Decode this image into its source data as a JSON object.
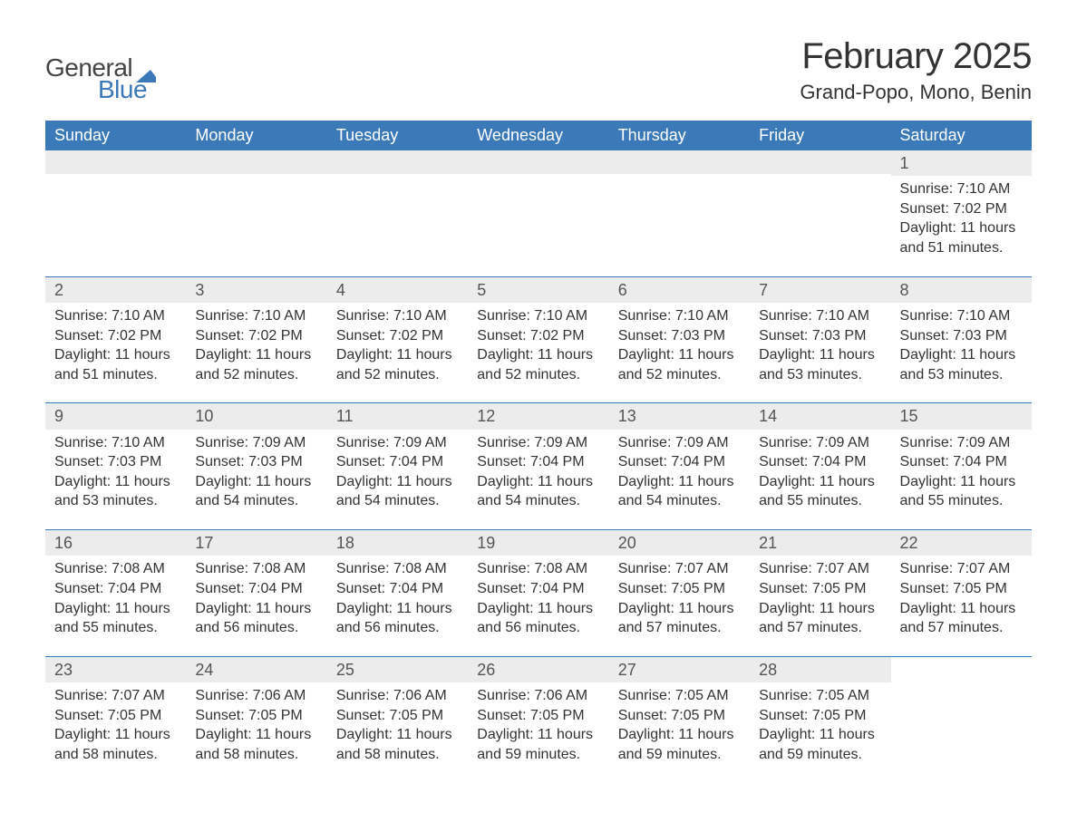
{
  "brand": {
    "general": "General",
    "blue": "Blue",
    "flag_color": "#3b79b8"
  },
  "title": "February 2025",
  "location": "Grand-Popo, Mono, Benin",
  "colors": {
    "header_bg": "#3b79b8",
    "header_text": "#ffffff",
    "daynum_bg": "#ececec",
    "text": "#333333"
  },
  "columns": [
    "Sunday",
    "Monday",
    "Tuesday",
    "Wednesday",
    "Thursday",
    "Friday",
    "Saturday"
  ],
  "weeks": [
    [
      null,
      null,
      null,
      null,
      null,
      null,
      {
        "n": "1",
        "sr": "Sunrise: 7:10 AM",
        "ss": "Sunset: 7:02 PM",
        "d1": "Daylight: 11 hours",
        "d2": "and 51 minutes."
      }
    ],
    [
      {
        "n": "2",
        "sr": "Sunrise: 7:10 AM",
        "ss": "Sunset: 7:02 PM",
        "d1": "Daylight: 11 hours",
        "d2": "and 51 minutes."
      },
      {
        "n": "3",
        "sr": "Sunrise: 7:10 AM",
        "ss": "Sunset: 7:02 PM",
        "d1": "Daylight: 11 hours",
        "d2": "and 52 minutes."
      },
      {
        "n": "4",
        "sr": "Sunrise: 7:10 AM",
        "ss": "Sunset: 7:02 PM",
        "d1": "Daylight: 11 hours",
        "d2": "and 52 minutes."
      },
      {
        "n": "5",
        "sr": "Sunrise: 7:10 AM",
        "ss": "Sunset: 7:02 PM",
        "d1": "Daylight: 11 hours",
        "d2": "and 52 minutes."
      },
      {
        "n": "6",
        "sr": "Sunrise: 7:10 AM",
        "ss": "Sunset: 7:03 PM",
        "d1": "Daylight: 11 hours",
        "d2": "and 52 minutes."
      },
      {
        "n": "7",
        "sr": "Sunrise: 7:10 AM",
        "ss": "Sunset: 7:03 PM",
        "d1": "Daylight: 11 hours",
        "d2": "and 53 minutes."
      },
      {
        "n": "8",
        "sr": "Sunrise: 7:10 AM",
        "ss": "Sunset: 7:03 PM",
        "d1": "Daylight: 11 hours",
        "d2": "and 53 minutes."
      }
    ],
    [
      {
        "n": "9",
        "sr": "Sunrise: 7:10 AM",
        "ss": "Sunset: 7:03 PM",
        "d1": "Daylight: 11 hours",
        "d2": "and 53 minutes."
      },
      {
        "n": "10",
        "sr": "Sunrise: 7:09 AM",
        "ss": "Sunset: 7:03 PM",
        "d1": "Daylight: 11 hours",
        "d2": "and 54 minutes."
      },
      {
        "n": "11",
        "sr": "Sunrise: 7:09 AM",
        "ss": "Sunset: 7:04 PM",
        "d1": "Daylight: 11 hours",
        "d2": "and 54 minutes."
      },
      {
        "n": "12",
        "sr": "Sunrise: 7:09 AM",
        "ss": "Sunset: 7:04 PM",
        "d1": "Daylight: 11 hours",
        "d2": "and 54 minutes."
      },
      {
        "n": "13",
        "sr": "Sunrise: 7:09 AM",
        "ss": "Sunset: 7:04 PM",
        "d1": "Daylight: 11 hours",
        "d2": "and 54 minutes."
      },
      {
        "n": "14",
        "sr": "Sunrise: 7:09 AM",
        "ss": "Sunset: 7:04 PM",
        "d1": "Daylight: 11 hours",
        "d2": "and 55 minutes."
      },
      {
        "n": "15",
        "sr": "Sunrise: 7:09 AM",
        "ss": "Sunset: 7:04 PM",
        "d1": "Daylight: 11 hours",
        "d2": "and 55 minutes."
      }
    ],
    [
      {
        "n": "16",
        "sr": "Sunrise: 7:08 AM",
        "ss": "Sunset: 7:04 PM",
        "d1": "Daylight: 11 hours",
        "d2": "and 55 minutes."
      },
      {
        "n": "17",
        "sr": "Sunrise: 7:08 AM",
        "ss": "Sunset: 7:04 PM",
        "d1": "Daylight: 11 hours",
        "d2": "and 56 minutes."
      },
      {
        "n": "18",
        "sr": "Sunrise: 7:08 AM",
        "ss": "Sunset: 7:04 PM",
        "d1": "Daylight: 11 hours",
        "d2": "and 56 minutes."
      },
      {
        "n": "19",
        "sr": "Sunrise: 7:08 AM",
        "ss": "Sunset: 7:04 PM",
        "d1": "Daylight: 11 hours",
        "d2": "and 56 minutes."
      },
      {
        "n": "20",
        "sr": "Sunrise: 7:07 AM",
        "ss": "Sunset: 7:05 PM",
        "d1": "Daylight: 11 hours",
        "d2": "and 57 minutes."
      },
      {
        "n": "21",
        "sr": "Sunrise: 7:07 AM",
        "ss": "Sunset: 7:05 PM",
        "d1": "Daylight: 11 hours",
        "d2": "and 57 minutes."
      },
      {
        "n": "22",
        "sr": "Sunrise: 7:07 AM",
        "ss": "Sunset: 7:05 PM",
        "d1": "Daylight: 11 hours",
        "d2": "and 57 minutes."
      }
    ],
    [
      {
        "n": "23",
        "sr": "Sunrise: 7:07 AM",
        "ss": "Sunset: 7:05 PM",
        "d1": "Daylight: 11 hours",
        "d2": "and 58 minutes."
      },
      {
        "n": "24",
        "sr": "Sunrise: 7:06 AM",
        "ss": "Sunset: 7:05 PM",
        "d1": "Daylight: 11 hours",
        "d2": "and 58 minutes."
      },
      {
        "n": "25",
        "sr": "Sunrise: 7:06 AM",
        "ss": "Sunset: 7:05 PM",
        "d1": "Daylight: 11 hours",
        "d2": "and 58 minutes."
      },
      {
        "n": "26",
        "sr": "Sunrise: 7:06 AM",
        "ss": "Sunset: 7:05 PM",
        "d1": "Daylight: 11 hours",
        "d2": "and 59 minutes."
      },
      {
        "n": "27",
        "sr": "Sunrise: 7:05 AM",
        "ss": "Sunset: 7:05 PM",
        "d1": "Daylight: 11 hours",
        "d2": "and 59 minutes."
      },
      {
        "n": "28",
        "sr": "Sunrise: 7:05 AM",
        "ss": "Sunset: 7:05 PM",
        "d1": "Daylight: 11 hours",
        "d2": "and 59 minutes."
      },
      null
    ]
  ]
}
